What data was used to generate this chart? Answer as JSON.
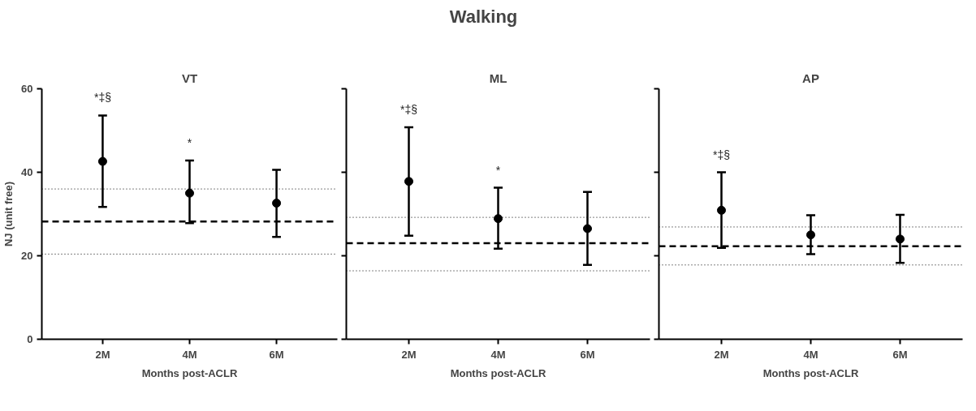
{
  "chart_data": [
    {
      "type": "other",
      "title": "Walking"
    },
    {
      "type": "scatter",
      "title": "VT",
      "xlabel": "Months post-ACLR",
      "ylabel": "NJ (unit free)",
      "categories": [
        "2M",
        "4M",
        "6M"
      ],
      "ylim": [
        0,
        60
      ],
      "yticks": [
        0,
        20,
        40,
        60
      ],
      "marker": "circle",
      "grid": false,
      "series": [
        {
          "color": "#000000",
          "values": [
            42.6,
            35.0,
            32.6
          ],
          "errors": [
            [
              31.7,
              53.6
            ],
            [
              27.8,
              42.8
            ],
            [
              24.5,
              40.6
            ]
          ]
        }
      ],
      "ref_lines": [
        {
          "axis": "y",
          "value": 28.2,
          "color": "#000000",
          "line_style": "dashed"
        },
        {
          "axis": "y",
          "value": 36.0,
          "color": "#000000",
          "line_style": "dotted"
        },
        {
          "axis": "y",
          "value": 20.4,
          "color": "#000000",
          "line_style": "dotted"
        }
      ],
      "annotations": [
        "*‡§",
        "*"
      ]
    },
    {
      "type": "scatter",
      "title": "ML",
      "xlabel": "Months post-ACLR",
      "categories": [
        "2M",
        "4M",
        "6M"
      ],
      "ylim": [
        0,
        60
      ],
      "yticks": [
        {
          "value": 0,
          "label": null
        },
        {
          "value": 20,
          "label": null
        },
        {
          "value": 40,
          "label": null
        },
        {
          "value": 60,
          "label": null
        }
      ],
      "tick_labels": "x",
      "marker": "circle",
      "grid": false,
      "series": [
        {
          "color": "#000000",
          "values": [
            37.8,
            28.9,
            26.5
          ],
          "errors": [
            [
              24.8,
              50.8
            ],
            [
              21.7,
              36.3
            ],
            [
              17.8,
              35.3
            ]
          ]
        }
      ],
      "ref_lines": [
        {
          "axis": "y",
          "value": 23.0,
          "color": "#000000",
          "line_style": "dashed"
        },
        {
          "axis": "y",
          "value": 29.2,
          "color": "#000000",
          "line_style": "dotted"
        },
        {
          "axis": "y",
          "value": 16.4,
          "color": "#000000",
          "line_style": "dotted"
        }
      ],
      "annotations": [
        "*‡§",
        "*"
      ]
    },
    {
      "type": "scatter",
      "title": "AP",
      "xlabel": "Months post-ACLR",
      "categories": [
        "2M",
        "4M",
        "6M"
      ],
      "ylim": [
        0,
        60
      ],
      "yticks": [
        {
          "value": 0,
          "label": null
        },
        {
          "value": 20,
          "label": null
        },
        {
          "value": 40,
          "label": null
        },
        {
          "value": 60,
          "label": null
        }
      ],
      "tick_labels": "x",
      "marker": "circle",
      "grid": false,
      "series": [
        {
          "color": "#000000",
          "values": [
            30.9,
            25.0,
            24.0
          ],
          "errors": [
            [
              21.9,
              40.0
            ],
            [
              20.4,
              29.7
            ],
            [
              18.3,
              29.8
            ]
          ]
        }
      ],
      "ref_lines": [
        {
          "axis": "y",
          "value": 22.3,
          "color": "#000000",
          "line_style": "dashed"
        },
        {
          "axis": "y",
          "value": 26.9,
          "color": "#000000",
          "line_style": "dotted"
        },
        {
          "axis": "y",
          "value": 17.8,
          "color": "#000000",
          "line_style": "dotted"
        }
      ],
      "annotations": [
        "*‡§"
      ]
    }
  ]
}
